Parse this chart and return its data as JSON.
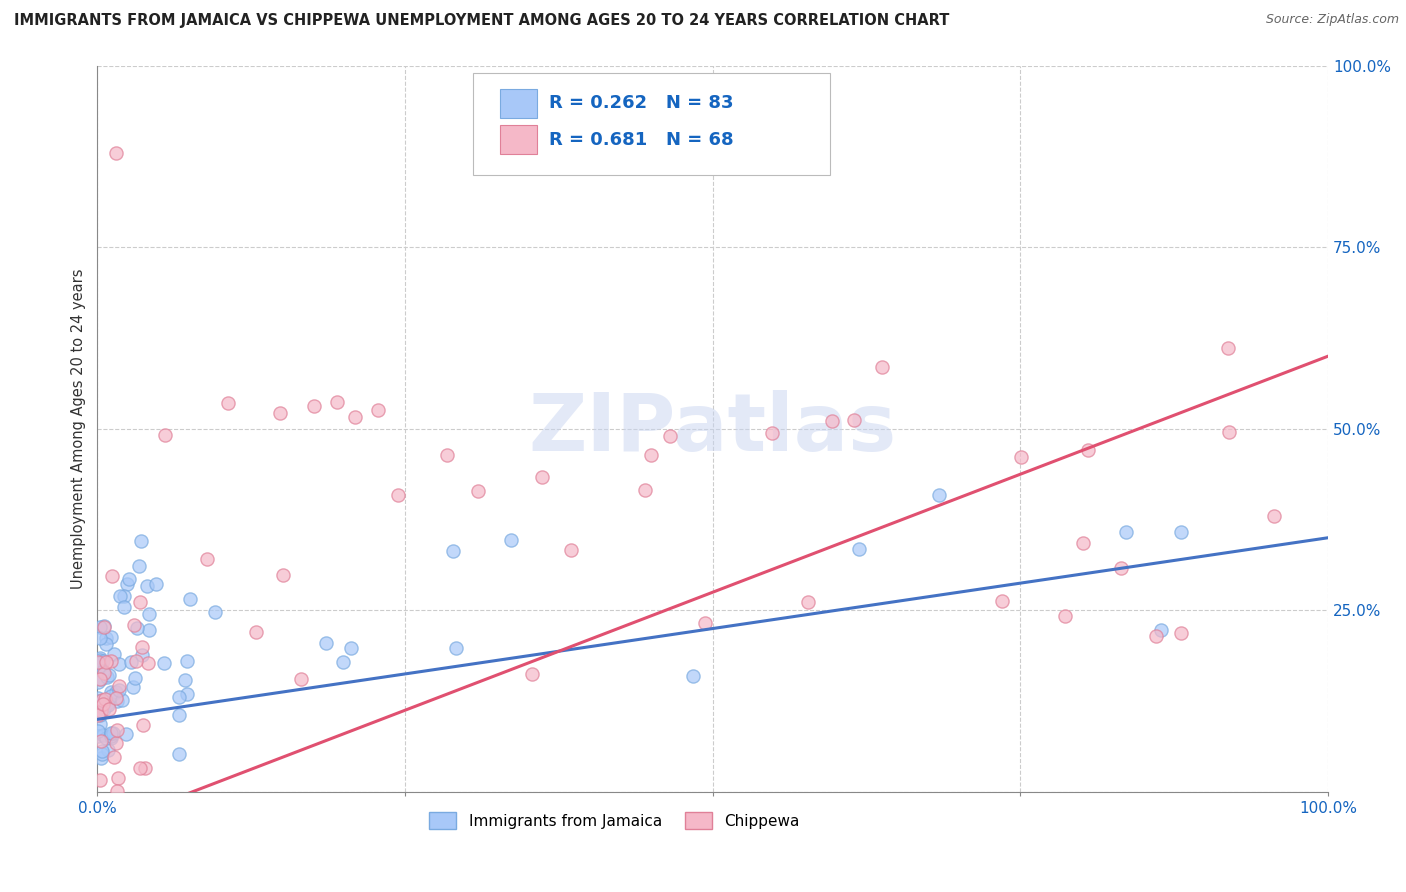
{
  "title": "IMMIGRANTS FROM JAMAICA VS CHIPPEWA UNEMPLOYMENT AMONG AGES 20 TO 24 YEARS CORRELATION CHART",
  "source": "Source: ZipAtlas.com",
  "ylabel": "Unemployment Among Ages 20 to 24 years",
  "series1_label": "Immigrants from Jamaica",
  "series1_color": "#A8C8F8",
  "series1_edge_color": "#7AAAE0",
  "series1_line_color": "#4472C4",
  "series1_R": "0.262",
  "series1_N": "83",
  "series2_label": "Chippewa",
  "series2_color": "#F5B8C8",
  "series2_edge_color": "#E08098",
  "series2_line_color": "#E05070",
  "series2_R": "0.681",
  "series2_N": "68",
  "legend_text_color": "#1565C0",
  "watermark": "ZIPatlas",
  "background_color": "#ffffff",
  "grid_color": "#cccccc",
  "grid_style": "--",
  "y_tick_labels_color": "#1565C0",
  "x_tick_labels_color": "#1565C0",
  "blue_trend_intercept": 0.1,
  "blue_trend_slope": 0.25,
  "pink_trend_intercept": -0.05,
  "pink_trend_slope": 0.65
}
